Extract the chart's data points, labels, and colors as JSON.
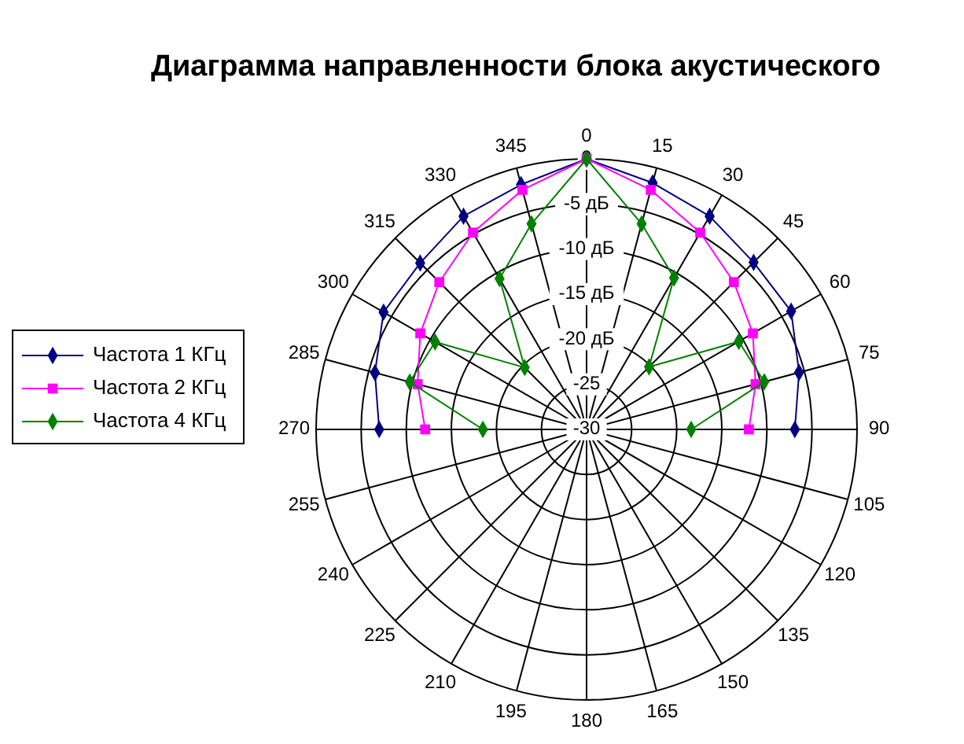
{
  "chart_data": {
    "type": "radar",
    "title": "Диаграмма направленности блока акустического",
    "categories": [
      "0",
      "15",
      "30",
      "45",
      "60",
      "75",
      "90",
      "105",
      "120",
      "135",
      "150",
      "165",
      "180",
      "195",
      "210",
      "225",
      "240",
      "255",
      "270",
      "285",
      "300",
      "315",
      "330",
      "345"
    ],
    "ylim": [
      -30,
      0
    ],
    "yticks": [
      -30,
      -25,
      {
        "value": -20,
        "label": "-20 дБ"
      },
      {
        "value": -15,
        "label": "-15 дБ"
      },
      {
        "value": -10,
        "label": "-10 дБ"
      },
      {
        "value": -5,
        "label": "-5 дБ"
      },
      0
    ],
    "grid": true,
    "legend": "left",
    "series": [
      {
        "name": "Частота 1 КГц",
        "color": "#000080",
        "marker": "diamond",
        "values": [
          0,
          -1.7,
          -2.7,
          -3.8,
          -3.8,
          -5.6,
          -6.9,
          null,
          null,
          null,
          null,
          null,
          null,
          null,
          null,
          null,
          null,
          null,
          -7.0,
          -5.7,
          -4.0,
          -3.9,
          -2.7,
          -1.9
        ]
      },
      {
        "name": "Частота 2 КГц",
        "color": "#ff00ff",
        "marker": "square",
        "values": [
          0,
          -2.5,
          -4.8,
          -6.9,
          -8.7,
          -10.6,
          -12.0,
          null,
          null,
          null,
          null,
          null,
          null,
          null,
          null,
          null,
          null,
          null,
          -12.1,
          -10.6,
          -8.7,
          -6.9,
          -4.8,
          -2.5
        ]
      },
      {
        "name": "Частота 4 КГц",
        "color": "#008000",
        "marker": "diamond",
        "values": [
          0,
          -6.4,
          -10.6,
          -20.2,
          -10.5,
          -9.6,
          -18.4,
          null,
          null,
          null,
          null,
          null,
          null,
          null,
          null,
          null,
          null,
          null,
          -18.5,
          -9.7,
          -10.6,
          -20.3,
          -10.7,
          -6.4
        ]
      }
    ]
  }
}
